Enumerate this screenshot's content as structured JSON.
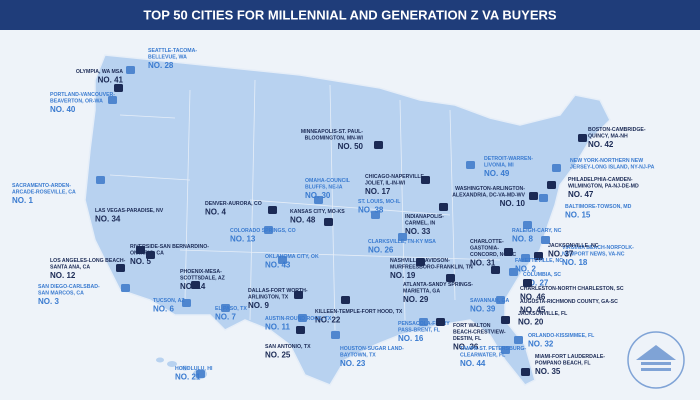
{
  "title": "TOP 50 CITIES FOR MILLENNIAL AND GENERATION Z VA BUYERS",
  "cities": [
    {
      "name": [
        "OLYMPIA, WA MSA"
      ],
      "rank": "NO. 41"
    },
    {
      "name": [
        "SEATTLE-TACOMA-",
        "BELLEVUE, WA"
      ],
      "rank": "NO. 28"
    },
    {
      "name": [
        "PORTLAND-VANCOUVER-",
        "BEAVERTON, OR-WA"
      ],
      "rank": "NO. 40"
    },
    {
      "name": [
        "MINNEAPOLIS-ST. PAUL-",
        "BLOOMINGTON, MN-WI"
      ],
      "rank": "NO. 50"
    },
    {
      "name": [
        "BOSTON-CAMBRIDGE-",
        "QUINCY, MA-NH"
      ],
      "rank": "NO. 42"
    },
    {
      "name": [
        "NEW YORK-NORTHERN NEW",
        "JERSEY-LONG ISLAND, NY-NJ-PA"
      ]
    },
    {
      "name": [
        "PHILADELPHIA-CAMDEN-",
        "WILMINGTON, PA-NJ-DE-MD"
      ],
      "rank": "NO. 47"
    },
    {
      "name": [
        "BALTIMORE-TOWSON, MD"
      ],
      "rank": "NO. 15"
    },
    {
      "name": [
        "VIRGINIA BEACH-NORFOLK-",
        "NEWPORT NEWS, VA-NC"
      ],
      "rank": "NO. 18"
    },
    {
      "name": [
        "WASHINGTON-ARLINGTON-",
        "ALEXANDRIA, DC-VA-MD-WV"
      ],
      "rank": "NO. 10"
    },
    {
      "name": [
        "DETROIT-WARREN-",
        "LIVONIA, MI"
      ],
      "rank": "NO. 49"
    },
    {
      "name": [
        "CHICAGO-NAPERVILLE-",
        "JOLIET, IL-IN-WI"
      ],
      "rank": "NO. 17"
    },
    {
      "name": [
        "OMAHA-COUNCIL",
        "BLUFFS, NE-IA"
      ],
      "rank": "NO. 30"
    },
    {
      "name": [
        "SACRAMENTO-ARDEN-",
        "ARCADE-ROSEVILLE, CA"
      ],
      "rank": "NO. 1"
    },
    {
      "name": [
        "DENVER-AURORA, CO"
      ],
      "rank": "NO. 4"
    },
    {
      "name": [
        "LAS VEGAS-PARADISE, NV"
      ],
      "rank": "NO. 34"
    },
    {
      "name": [
        "KANSAS CITY, MO-KS"
      ],
      "rank": "NO. 48"
    },
    {
      "name": [
        "ST. LOUIS, MO-IL"
      ],
      "rank": "NO. 38"
    },
    {
      "name": [
        "INDIANAPOLIS-",
        "CARMEL, IN"
      ],
      "rank": "NO. 33"
    },
    {
      "name": [
        "RALEIGH-CARY, NC"
      ],
      "rank": "NO. 8"
    },
    {
      "name": [
        "COLORADO SPRINGS, CO"
      ],
      "rank": "NO. 13"
    },
    {
      "name": [
        "CLARKSVILLE, TN-KY MSA"
      ],
      "rank": "NO. 26"
    },
    {
      "name": [
        "CHARLOTTE-",
        "GASTONIA-",
        "CONCORD, NC-SC"
      ],
      "rank": "NO. 31"
    },
    {
      "name": [
        "JACKSONVILLE, NC"
      ],
      "rank": "NO. 37"
    },
    {
      "name": [
        "RIVERSIDE-SAN BERNARDINO-",
        "ONTARIO, CA"
      ],
      "rank": "NO. 5"
    },
    {
      "name": [
        "OKLAHOMA CITY, OK"
      ],
      "rank": "NO. 43"
    },
    {
      "name": [
        "NASHVILLE-DAVIDSON-",
        "MURFREESBORO-FRANKLIN, TN"
      ],
      "rank": "NO. 19"
    },
    {
      "name": [
        "FAYETTEVILLE, NC"
      ],
      "rank": "NO. 2"
    },
    {
      "name": [
        "COLUMBIA, SC"
      ],
      "rank": "NO. 27"
    },
    {
      "name": [
        "LOS ANGELES-LONG BEACH-",
        "SANTA ANA, CA"
      ],
      "rank": "NO. 12"
    },
    {
      "name": [
        "PHOENIX-MESA-",
        "SCOTTSDALE, AZ"
      ],
      "rank": "NO. 14"
    },
    {
      "name": [
        "ATLANTA-SANDY SPRINGS-",
        "MARIETTA, GA"
      ],
      "rank": "NO. 29"
    },
    {
      "name": [
        "CHARLESTON-NORTH CHARLESTON, SC"
      ],
      "rank": "NO. 46"
    },
    {
      "name": [
        "SAN DIEGO-CARLSBAD-",
        "SAN MARCOS, CA"
      ],
      "rank": "NO. 3"
    },
    {
      "name": [
        "DALLAS-FORT WORTH-",
        "ARLINGTON, TX"
      ],
      "rank": "NO. 9"
    },
    {
      "name": [
        "AUGUSTA-RICHMOND COUNTY, GA-SC"
      ],
      "rank": "NO. 45"
    },
    {
      "name": [
        "TUCSON, AZ"
      ],
      "rank": "NO. 6"
    },
    {
      "name": [
        "EL PASO, TX"
      ],
      "rank": "NO. 7"
    },
    {
      "name": [
        "SAVANNAH, GA"
      ],
      "rank": "NO. 39"
    },
    {
      "name": [
        "JACKSONVILLE, FL"
      ],
      "rank": "NO. 20"
    },
    {
      "name": [
        "KILLEEN-TEMPLE-FORT HOOD, TX"
      ],
      "rank": "NO. 22"
    },
    {
      "name": [
        "AUSTIN-ROUND ROCK, TX"
      ],
      "rank": "NO. 11"
    },
    {
      "name": [
        "PENSACOLA-FERRY",
        "PASS-BRENT, FL"
      ],
      "rank": "NO. 16"
    },
    {
      "name": [
        "FORT WALTON",
        "BEACH-CRESTVIEW-",
        "DESTIN, FL"
      ],
      "rank": "NO. 36"
    },
    {
      "name": [
        "ORLANDO-KISSIMMEE, FL"
      ],
      "rank": "NO. 32"
    },
    {
      "name": [
        "SAN ANTONIO, TX"
      ],
      "rank": "NO. 25"
    },
    {
      "name": [
        "HOUSTON-SUGAR LAND-",
        "BAYTOWN, TX"
      ],
      "rank": "NO. 23"
    },
    {
      "name": [
        "TAMPA-ST. PETERSBURG-",
        "CLEARWATER, FL"
      ],
      "rank": "NO. 44"
    },
    {
      "name": [
        "MIAMI-FORT LAUDERDALE-",
        "POMPANO BEACH, FL"
      ],
      "rank": "NO. 35"
    },
    {
      "name": [
        "HONOLULU, HI"
      ],
      "rank": "NO. 21"
    }
  ]
}
